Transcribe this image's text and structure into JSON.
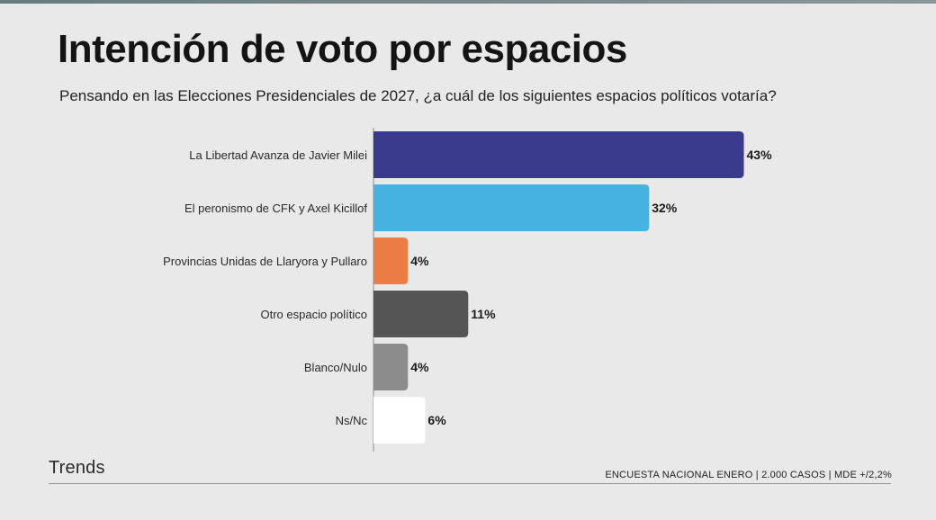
{
  "header": {
    "title": "Intención de voto por espacios",
    "subtitle": "Pensando en las Elecciones Presidenciales de 2027, ¿a cuál de los siguientes espacios políticos votaría?"
  },
  "footer": {
    "brand": "Trends",
    "source": "ENCUESTA NACIONAL ENERO | 2.000 CASOS | MDE +/2,2%"
  },
  "chart_data": {
    "type": "bar",
    "orientation": "horizontal",
    "title": "Intención de voto por espacios",
    "subtitle": "Pensando en las Elecciones Presidenciales de 2027, ¿a cuál de los siguientes espacios políticos votaría?",
    "categories": [
      "La Libertad Avanza de Javier Milei",
      "El peronismo de CFK y Axel Kicillof",
      "Provincias Unidas de Llaryora y Pullaro",
      "Otro espacio político",
      "Blanco/Nulo",
      "Ns/Nc"
    ],
    "values": [
      43,
      32,
      4,
      11,
      4,
      6
    ],
    "value_labels": [
      "43%",
      "32%",
      "4%",
      "11%",
      "4%",
      "6%"
    ],
    "colors": [
      "#3a3a8c",
      "#47b3e3",
      "#ec7d45",
      "#555555",
      "#8c8c8c",
      "#ffffff"
    ],
    "unit": "%",
    "grid": false,
    "legend": "none"
  }
}
